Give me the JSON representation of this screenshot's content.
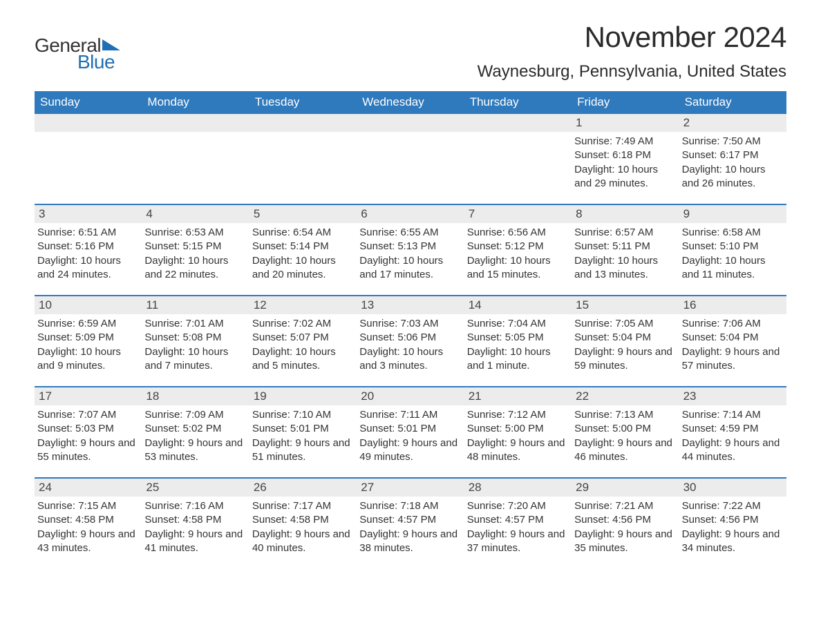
{
  "logo": {
    "text_general": "General",
    "text_blue": "Blue",
    "flag_color": "#1f6fb2"
  },
  "header": {
    "month_title": "November 2024",
    "location": "Waynesburg, Pennsylvania, United States"
  },
  "colors": {
    "header_bg": "#2f79bd",
    "header_text": "#ffffff",
    "daynum_bg": "#ececec",
    "row_border": "#2f79bd",
    "body_text": "#333333",
    "background": "#ffffff"
  },
  "day_names": [
    "Sunday",
    "Monday",
    "Tuesday",
    "Wednesday",
    "Thursday",
    "Friday",
    "Saturday"
  ],
  "labels": {
    "sunrise": "Sunrise:",
    "sunset": "Sunset:",
    "daylight": "Daylight:"
  },
  "weeks": [
    [
      {
        "empty": true
      },
      {
        "empty": true
      },
      {
        "empty": true
      },
      {
        "empty": true
      },
      {
        "empty": true
      },
      {
        "day": 1,
        "sunrise": "7:49 AM",
        "sunset": "6:18 PM",
        "daylight": "10 hours and 29 minutes."
      },
      {
        "day": 2,
        "sunrise": "7:50 AM",
        "sunset": "6:17 PM",
        "daylight": "10 hours and 26 minutes."
      }
    ],
    [
      {
        "day": 3,
        "sunrise": "6:51 AM",
        "sunset": "5:16 PM",
        "daylight": "10 hours and 24 minutes."
      },
      {
        "day": 4,
        "sunrise": "6:53 AM",
        "sunset": "5:15 PM",
        "daylight": "10 hours and 22 minutes."
      },
      {
        "day": 5,
        "sunrise": "6:54 AM",
        "sunset": "5:14 PM",
        "daylight": "10 hours and 20 minutes."
      },
      {
        "day": 6,
        "sunrise": "6:55 AM",
        "sunset": "5:13 PM",
        "daylight": "10 hours and 17 minutes."
      },
      {
        "day": 7,
        "sunrise": "6:56 AM",
        "sunset": "5:12 PM",
        "daylight": "10 hours and 15 minutes."
      },
      {
        "day": 8,
        "sunrise": "6:57 AM",
        "sunset": "5:11 PM",
        "daylight": "10 hours and 13 minutes."
      },
      {
        "day": 9,
        "sunrise": "6:58 AM",
        "sunset": "5:10 PM",
        "daylight": "10 hours and 11 minutes."
      }
    ],
    [
      {
        "day": 10,
        "sunrise": "6:59 AM",
        "sunset": "5:09 PM",
        "daylight": "10 hours and 9 minutes."
      },
      {
        "day": 11,
        "sunrise": "7:01 AM",
        "sunset": "5:08 PM",
        "daylight": "10 hours and 7 minutes."
      },
      {
        "day": 12,
        "sunrise": "7:02 AM",
        "sunset": "5:07 PM",
        "daylight": "10 hours and 5 minutes."
      },
      {
        "day": 13,
        "sunrise": "7:03 AM",
        "sunset": "5:06 PM",
        "daylight": "10 hours and 3 minutes."
      },
      {
        "day": 14,
        "sunrise": "7:04 AM",
        "sunset": "5:05 PM",
        "daylight": "10 hours and 1 minute."
      },
      {
        "day": 15,
        "sunrise": "7:05 AM",
        "sunset": "5:04 PM",
        "daylight": "9 hours and 59 minutes."
      },
      {
        "day": 16,
        "sunrise": "7:06 AM",
        "sunset": "5:04 PM",
        "daylight": "9 hours and 57 minutes."
      }
    ],
    [
      {
        "day": 17,
        "sunrise": "7:07 AM",
        "sunset": "5:03 PM",
        "daylight": "9 hours and 55 minutes."
      },
      {
        "day": 18,
        "sunrise": "7:09 AM",
        "sunset": "5:02 PM",
        "daylight": "9 hours and 53 minutes."
      },
      {
        "day": 19,
        "sunrise": "7:10 AM",
        "sunset": "5:01 PM",
        "daylight": "9 hours and 51 minutes."
      },
      {
        "day": 20,
        "sunrise": "7:11 AM",
        "sunset": "5:01 PM",
        "daylight": "9 hours and 49 minutes."
      },
      {
        "day": 21,
        "sunrise": "7:12 AM",
        "sunset": "5:00 PM",
        "daylight": "9 hours and 48 minutes."
      },
      {
        "day": 22,
        "sunrise": "7:13 AM",
        "sunset": "5:00 PM",
        "daylight": "9 hours and 46 minutes."
      },
      {
        "day": 23,
        "sunrise": "7:14 AM",
        "sunset": "4:59 PM",
        "daylight": "9 hours and 44 minutes."
      }
    ],
    [
      {
        "day": 24,
        "sunrise": "7:15 AM",
        "sunset": "4:58 PM",
        "daylight": "9 hours and 43 minutes."
      },
      {
        "day": 25,
        "sunrise": "7:16 AM",
        "sunset": "4:58 PM",
        "daylight": "9 hours and 41 minutes."
      },
      {
        "day": 26,
        "sunrise": "7:17 AM",
        "sunset": "4:58 PM",
        "daylight": "9 hours and 40 minutes."
      },
      {
        "day": 27,
        "sunrise": "7:18 AM",
        "sunset": "4:57 PM",
        "daylight": "9 hours and 38 minutes."
      },
      {
        "day": 28,
        "sunrise": "7:20 AM",
        "sunset": "4:57 PM",
        "daylight": "9 hours and 37 minutes."
      },
      {
        "day": 29,
        "sunrise": "7:21 AM",
        "sunset": "4:56 PM",
        "daylight": "9 hours and 35 minutes."
      },
      {
        "day": 30,
        "sunrise": "7:22 AM",
        "sunset": "4:56 PM",
        "daylight": "9 hours and 34 minutes."
      }
    ]
  ]
}
